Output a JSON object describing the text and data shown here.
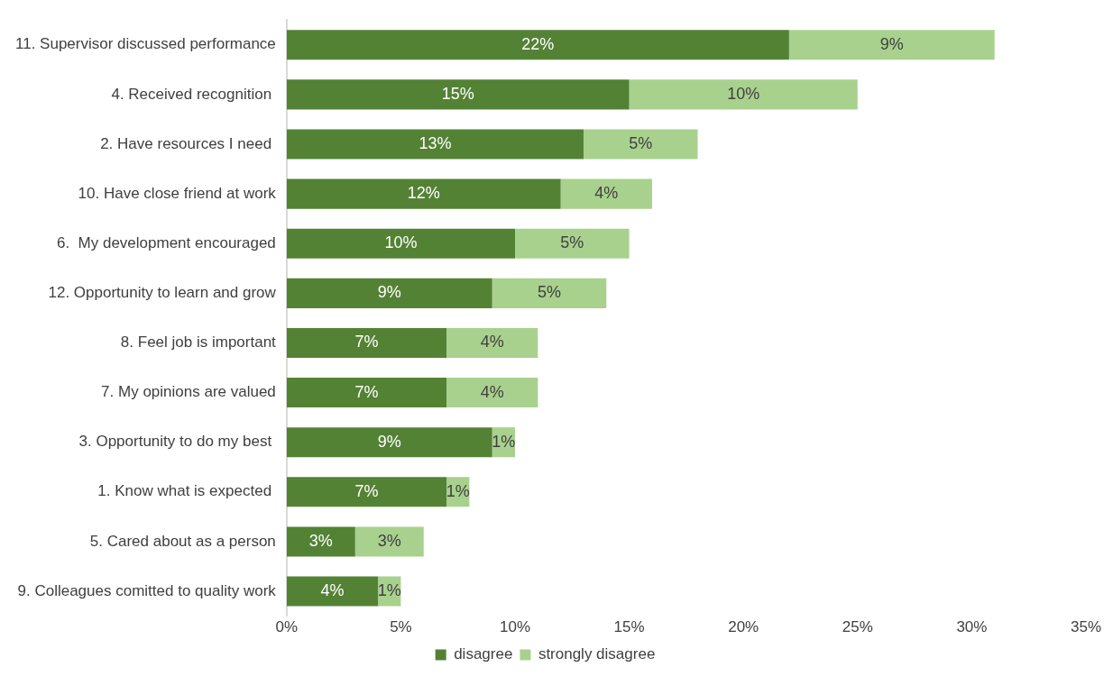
{
  "chart_data": {
    "type": "bar",
    "orientation": "horizontal",
    "stacked": true,
    "categories": [
      "11. Supervisor discussed performance",
      "4. Received recognition ",
      "2. Have resources I need ",
      "10. Have close friend at work",
      "6.  My development encouraged",
      "12. Opportunity to learn and grow",
      "8. Feel job is important",
      "7. My opinions are valued",
      "3. Opportunity to do my best ",
      "1. Know what is expected ",
      "5. Cared about as a person",
      "9. Colleagues comitted to quality work"
    ],
    "series": [
      {
        "name": "disagree",
        "color": "#548235",
        "values": [
          22,
          15,
          13,
          12,
          10,
          9,
          7,
          7,
          9,
          7,
          3,
          4
        ],
        "value_labels": [
          "22%",
          "15%",
          "13%",
          "12%",
          "10%",
          "9%",
          "7%",
          "7%",
          "9%",
          "7%",
          "3%",
          "4%"
        ]
      },
      {
        "name": "strongly disagree",
        "color": "#a9d18e",
        "values": [
          9,
          10,
          5,
          4,
          5,
          5,
          4,
          4,
          1,
          1,
          3,
          1
        ],
        "value_labels": [
          "9%",
          "10%",
          "5%",
          "4%",
          "5%",
          "5%",
          "4%",
          "4%",
          "1%",
          "1%",
          "3%",
          "1%"
        ]
      }
    ],
    "xlim": [
      0,
      35
    ],
    "xticks": [
      {
        "value": 0,
        "label": "0%"
      },
      {
        "value": 5,
        "label": "5%"
      },
      {
        "value": 10,
        "label": "10%"
      },
      {
        "value": 15,
        "label": "15%"
      },
      {
        "value": 20,
        "label": "20%"
      },
      {
        "value": 25,
        "label": "25%"
      },
      {
        "value": 30,
        "label": "30%"
      },
      {
        "value": 35,
        "label": "35%"
      }
    ],
    "legend": "bottom",
    "grid": false
  }
}
